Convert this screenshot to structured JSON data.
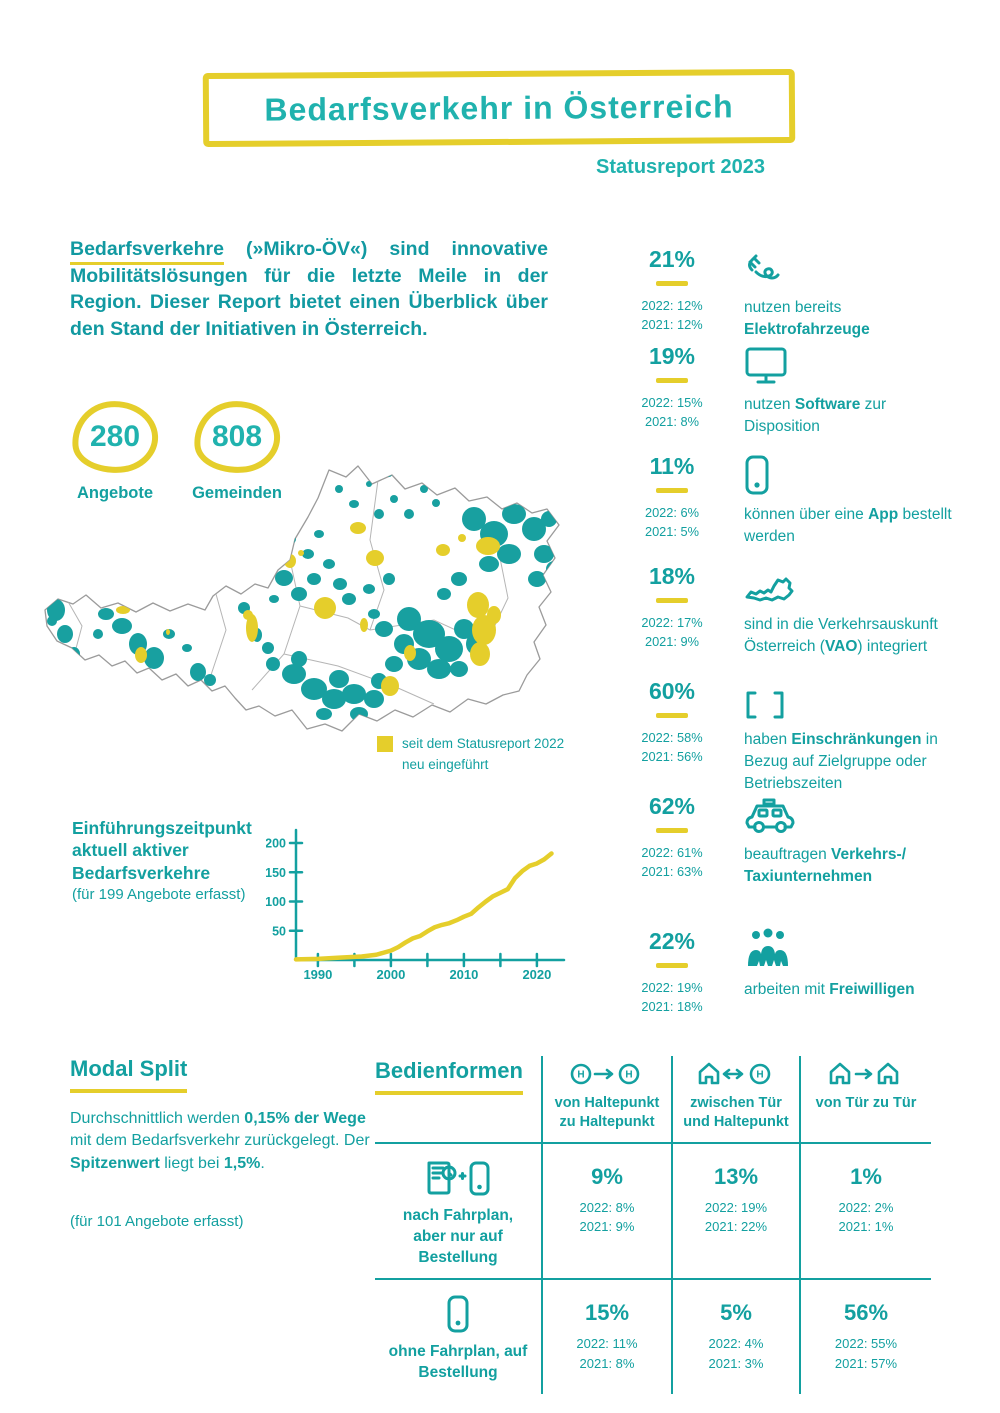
{
  "header": {
    "title": "Bedarfsverkehr in Österreich",
    "subtitle": "Statusreport 2023"
  },
  "intro": {
    "lead": "Bedarfsverkehre",
    "rest": " (»Mikro-ÖV«) sind innovative Mobilitätslösungen für die letzte Meile in der Region. Dieser Report bietet einen Überblick über den Stand der Initiativen in Österreich."
  },
  "counters": [
    {
      "value": "280",
      "label": "Angebote"
    },
    {
      "value": "808",
      "label": "Gemeinden"
    }
  ],
  "map": {
    "legend_line1": "seit dem Statusreport 2022",
    "legend_line2": "neu eingeführt",
    "existing_color": "#18a0a0",
    "new_color": "#e5ce2b"
  },
  "chart_data": {
    "type": "line",
    "title": "Einführungszeitpunkt aktuell aktiver Bedarfsverkehre",
    "subtitle": "(für 199 Angebote erfasst)",
    "xlabel": "",
    "ylabel": "",
    "xlim": [
      1987,
      2023
    ],
    "ylim": [
      0,
      200
    ],
    "yticks": [
      50,
      100,
      150,
      200
    ],
    "xticks": [
      1990,
      1995,
      2000,
      2005,
      2010,
      2015,
      2020
    ],
    "xtick_labeled": [
      1990,
      2000,
      2010,
      2020
    ],
    "x": [
      1987,
      1990,
      1993,
      1996,
      1998,
      2000,
      2001,
      2002,
      2003,
      2004,
      2005,
      2006,
      2007,
      2008,
      2009,
      2010,
      2011,
      2012,
      2013,
      2014,
      2015,
      2016,
      2017,
      2018,
      2019,
      2020,
      2021,
      2022
    ],
    "values": [
      1,
      2,
      4,
      6,
      9,
      16,
      22,
      30,
      37,
      41,
      49,
      56,
      60,
      63,
      68,
      74,
      79,
      90,
      100,
      109,
      115,
      121,
      140,
      152,
      161,
      165,
      172,
      182
    ],
    "line_color": "#e5ce2b",
    "axis_color": "#13a0a0",
    "grid": false,
    "legend_position": "none"
  },
  "stats": [
    {
      "value": "21%",
      "y2022": "2022: 12%",
      "y2021": "2021: 12%",
      "icon": "plug-icon",
      "desc": {
        "pre": "nutzen bereits ",
        "bold": "Elektrofahrzeuge",
        "post": ""
      }
    },
    {
      "value": "19%",
      "y2022": "2022: 15%",
      "y2021": "2021: 8%",
      "icon": "monitor-icon",
      "desc": {
        "pre": "nutzen ",
        "bold": "Software",
        "post": " zur Disposition"
      }
    },
    {
      "value": "11%",
      "y2022": "2022: 6%",
      "y2021": "2021: 5%",
      "icon": "smartphone-icon",
      "desc": {
        "pre": "können über eine ",
        "bold": "App",
        "post": " bestellt werden"
      }
    },
    {
      "value": "18%",
      "y2022": "2022: 17%",
      "y2021": "2021: 9%",
      "icon": "austria-outline-icon",
      "desc": {
        "pre": "sind in die Verkehrs­auskunft Österreich (",
        "bold": "VAO",
        "post": ") integriert"
      }
    },
    {
      "value": "60%",
      "y2022": "2022: 58%",
      "y2021": "2021: 56%",
      "icon": "brackets-icon",
      "desc": {
        "pre": "haben ",
        "bold": "Einschränkungen",
        "post": " in Bezug auf Zielgruppe oder Betriebszeiten"
      }
    },
    {
      "value": "62%",
      "y2022": "2022: 61%",
      "y2021": "2021: 63%",
      "icon": "taxi-icon",
      "desc": {
        "pre": "beauftragen ",
        "bold": "Verkehrs-/ Taxiunternehmen",
        "post": ""
      }
    },
    {
      "value": "22%",
      "y2022": "2022: 19%",
      "y2021": "2021: 18%",
      "icon": "people-group-icon",
      "desc": {
        "pre": "arbeiten mit ",
        "bold": "Freiwilligen",
        "post": ""
      }
    }
  ],
  "modal_split": {
    "title": "Modal Split",
    "text_parts": [
      {
        "t": "Durchschnittlich werden "
      },
      {
        "t": "0,15% der Wege",
        "b": true
      },
      {
        "t": " mit dem Bedarfsverkehr zurückgelegt. Der "
      },
      {
        "t": "Spitzenwert",
        "b": true
      },
      {
        "t": " liegt bei "
      },
      {
        "t": "1,5%",
        "b": true
      },
      {
        "t": "."
      }
    ],
    "note": "(für 101 Angebote erfasst)"
  },
  "bedienformen": {
    "title": "Bedienformen",
    "columns": [
      {
        "icon": "stop-to-stop-icon",
        "label": "von Haltepunkt zu Haltepunkt"
      },
      {
        "icon": "door-to-stop-icon",
        "label": "zwischen Tür und Haltepunkt"
      },
      {
        "icon": "door-to-door-icon",
        "label": "von Tür zu Tür"
      }
    ],
    "rows": [
      {
        "icon": "schedule-and-phone-icon",
        "label": "nach Fahrplan, aber nur auf Bestellung",
        "cells": [
          {
            "value": "9%",
            "y2022": "2022: 8%",
            "y2021": "2021: 9%"
          },
          {
            "value": "13%",
            "y2022": "2022: 19%",
            "y2021": "2021: 22%"
          },
          {
            "value": "1%",
            "y2022": "2022: 2%",
            "y2021": "2021: 1%"
          }
        ]
      },
      {
        "icon": "phone-icon",
        "label": "ohne Fahrplan, auf Bestellung",
        "cells": [
          {
            "value": "15%",
            "y2022": "2022: 11%",
            "y2021": "2021: 8%"
          },
          {
            "value": "5%",
            "y2022": "2022: 4%",
            "y2021": "2021: 3%"
          },
          {
            "value": "56%",
            "y2022": "2022: 55%",
            "y2021": "2021: 57%"
          }
        ]
      }
    ]
  },
  "colors": {
    "teal": "#13a0a0",
    "teal_bright": "#20b2ae",
    "yellow": "#e5ce2b"
  }
}
